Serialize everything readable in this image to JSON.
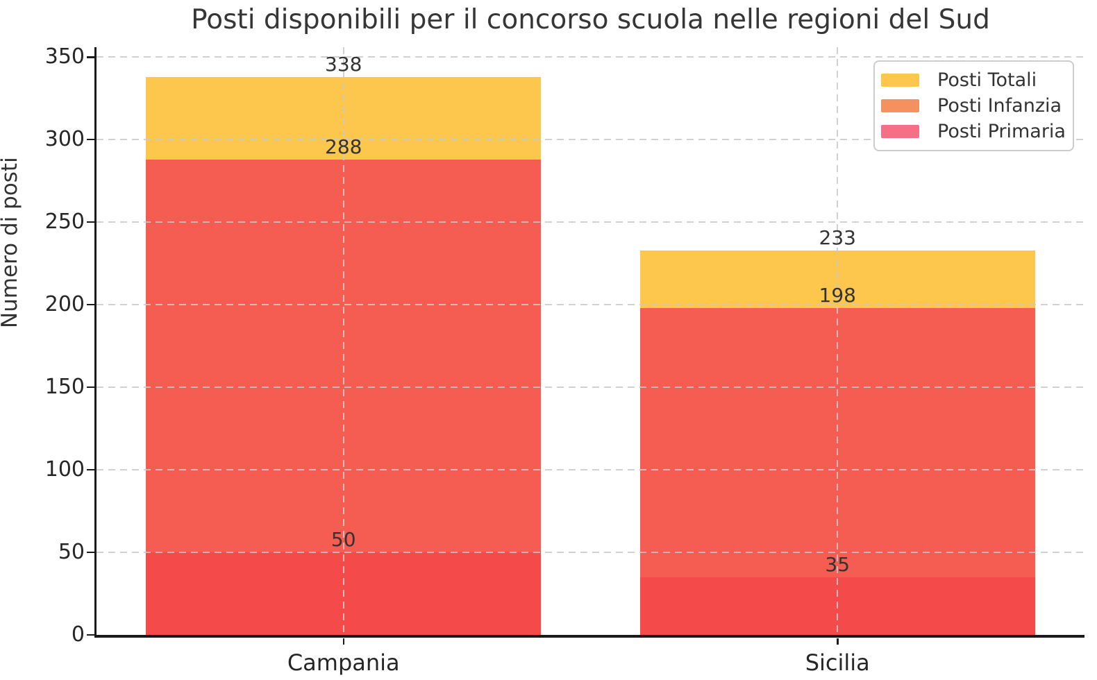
{
  "chart_data": {
    "type": "bar",
    "mode": "overlapping",
    "title": "Posti disponibili per il concorso scuola nelle regioni del Sud",
    "ylabel": "Numero di posti",
    "xlabel": "",
    "categories": [
      "Campania",
      "Sicilia"
    ],
    "series": [
      {
        "name": "Posti Totali",
        "values": [
          338,
          233
        ],
        "legend_color": "#FDC64D",
        "fill_color": "#FDC64D"
      },
      {
        "name": "Posti Infanzia",
        "values": [
          50,
          35
        ],
        "legend_color": "#F4915E",
        "fill_color": "#F54A4A"
      },
      {
        "name": "Posti Primaria",
        "values": [
          288,
          198
        ],
        "legend_color": "#F76E87",
        "fill_color": "#F55C52"
      }
    ],
    "bar_value_labels": [
      {
        "category": "Campania",
        "labels": [
          "338",
          "288",
          "50"
        ]
      },
      {
        "category": "Sicilia",
        "labels": [
          "233",
          "198",
          "35"
        ]
      }
    ],
    "yticks": [
      0,
      50,
      100,
      150,
      200,
      250,
      300,
      350
    ],
    "ylim": [
      0,
      356
    ],
    "grid": true,
    "grid_style": "dashed",
    "legend_position": "upper right"
  },
  "colors": {
    "background": "#ffffff",
    "grid": "#c9c9c9",
    "axis": "#1a1a1a",
    "title_text": "#363636",
    "tick_text": "#262626",
    "label_text": "#333333",
    "legend_border": "#cccccc",
    "legend_background": "#ffffff"
  }
}
